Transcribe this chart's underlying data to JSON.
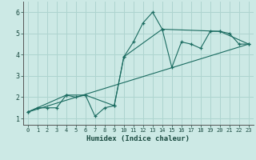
{
  "title": "",
  "xlabel": "Humidex (Indice chaleur)",
  "xlim": [
    -0.5,
    23.5
  ],
  "ylim": [
    0.7,
    6.5
  ],
  "xticks": [
    0,
    1,
    2,
    3,
    4,
    5,
    6,
    7,
    8,
    9,
    10,
    11,
    12,
    13,
    14,
    15,
    16,
    17,
    18,
    19,
    20,
    21,
    22,
    23
  ],
  "yticks": [
    1,
    2,
    3,
    4,
    5,
    6
  ],
  "bg_color": "#cce9e5",
  "grid_color": "#aed4cf",
  "line_color": "#1a6b60",
  "line1_x": [
    0,
    1,
    2,
    3,
    4,
    5,
    6,
    7,
    8,
    9,
    10,
    11,
    12,
    13,
    14,
    15,
    16,
    17,
    18,
    19,
    20,
    21,
    22,
    23
  ],
  "line1_y": [
    1.3,
    1.5,
    1.5,
    1.5,
    2.1,
    2.0,
    2.1,
    1.1,
    1.5,
    1.6,
    3.9,
    4.6,
    5.5,
    6.0,
    5.2,
    3.4,
    4.6,
    4.5,
    4.3,
    5.1,
    5.1,
    5.0,
    4.5,
    4.5
  ],
  "line2_x": [
    0,
    4,
    6,
    9,
    10,
    14,
    20,
    23
  ],
  "line2_y": [
    1.3,
    2.1,
    2.1,
    1.6,
    3.9,
    5.2,
    5.1,
    4.5
  ],
  "line3_x": [
    0,
    23
  ],
  "line3_y": [
    1.3,
    4.5
  ]
}
